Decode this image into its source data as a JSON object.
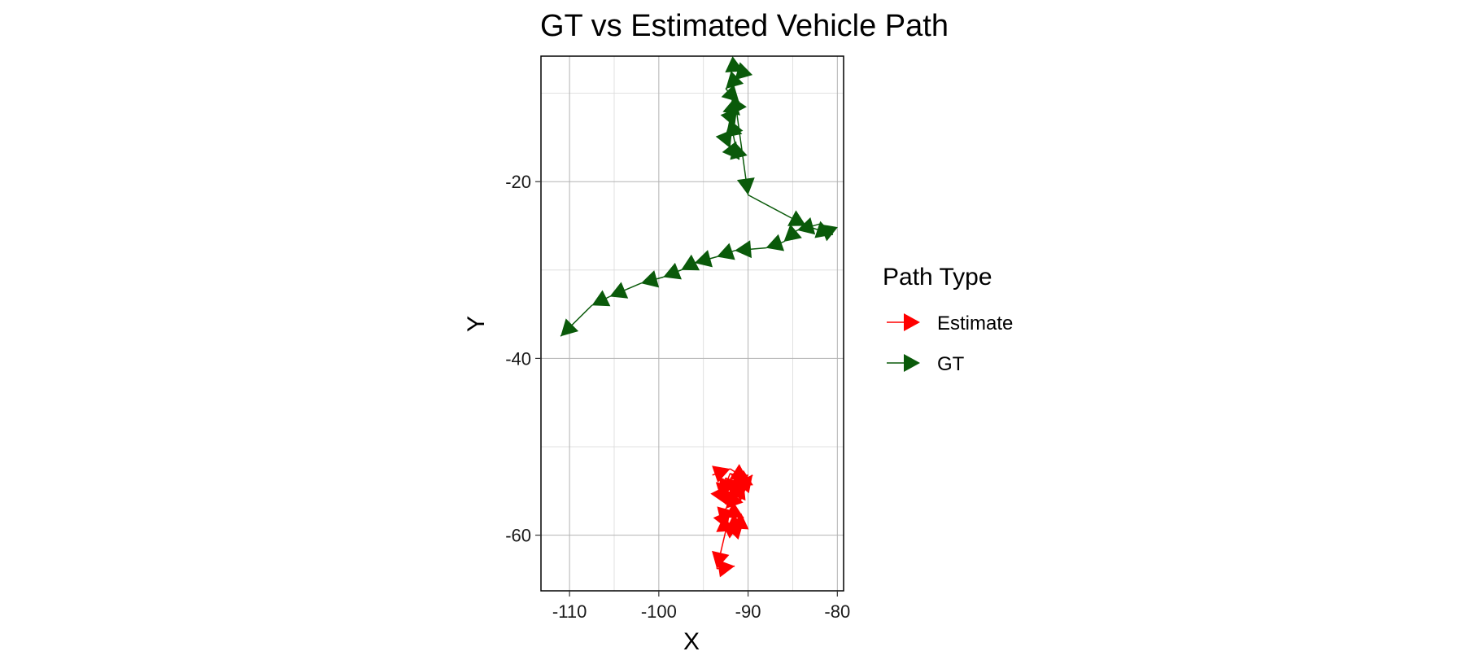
{
  "chart_data": {
    "type": "line",
    "title": "GT vs Estimated Vehicle Path",
    "xlabel": "X",
    "ylabel": "Y",
    "xlim": [
      -113.2,
      -79.3
    ],
    "ylim": [
      -66.3,
      -5.8
    ],
    "x_ticks": [
      -110,
      -100,
      -90,
      -80
    ],
    "y_ticks": [
      -20,
      -40,
      -60
    ],
    "x_tick_labels": [
      "-110",
      "-100",
      "-90",
      "-80"
    ],
    "y_tick_labels": [
      "-20",
      "-40",
      "-60"
    ],
    "grid": true,
    "legend": {
      "title": "Path Type",
      "placement": "right",
      "entries": [
        "Estimate",
        "GT"
      ]
    },
    "series": [
      {
        "name": "Estimate",
        "color": "#FF0000",
        "x": [
          -94.0,
          -92.0,
          -90.0,
          -89.5,
          -91.5,
          -92.5,
          -93.0,
          -91.0,
          -90.5,
          -92.0,
          -93.0,
          -92.5,
          -91.0,
          -90.0,
          -92.5,
          -93.0,
          -91.5,
          -90.5,
          -92.0,
          -93.0,
          -92.0,
          -90.5,
          -92.5,
          -93.5,
          -91.5
        ],
        "y": [
          -53.2,
          -52.5,
          -53.8,
          -53.2,
          -54.5,
          -53.5,
          -56.0,
          -55.2,
          -54.0,
          -53.0,
          -55.5,
          -56.5,
          -55.0,
          -54.2,
          -57.0,
          -58.8,
          -59.5,
          -58.5,
          -59.2,
          -58.5,
          -57.2,
          -58.0,
          -59.5,
          -63.8,
          -63.5
        ]
      },
      {
        "name": "GT",
        "color": "#0A5A0A",
        "x": [
          -92.0,
          -90.5,
          -91.5,
          -92.5,
          -91.0,
          -92.0,
          -91.5,
          -92.5,
          -92.0,
          -91.0,
          -91.5,
          -92.0,
          -91.5,
          -90.0,
          -83.5,
          -80.5,
          -82.0,
          -84.5,
          -86.0,
          -88.0,
          -91.5,
          -93.5,
          -96.0,
          -97.5,
          -99.5,
          -102.0,
          -105.5,
          -107.5,
          -111.0
        ],
        "y": [
          -6.8,
          -7.5,
          -8.5,
          -9.5,
          -11.0,
          -12.5,
          -13.8,
          -15.0,
          -16.2,
          -17.5,
          -15.5,
          -13.0,
          -10.5,
          -21.5,
          -25.0,
          -26.0,
          -24.8,
          -25.5,
          -26.8,
          -27.5,
          -27.8,
          -28.5,
          -29.2,
          -30.0,
          -30.8,
          -31.5,
          -33.0,
          -34.0,
          -37.5
        ]
      }
    ]
  }
}
